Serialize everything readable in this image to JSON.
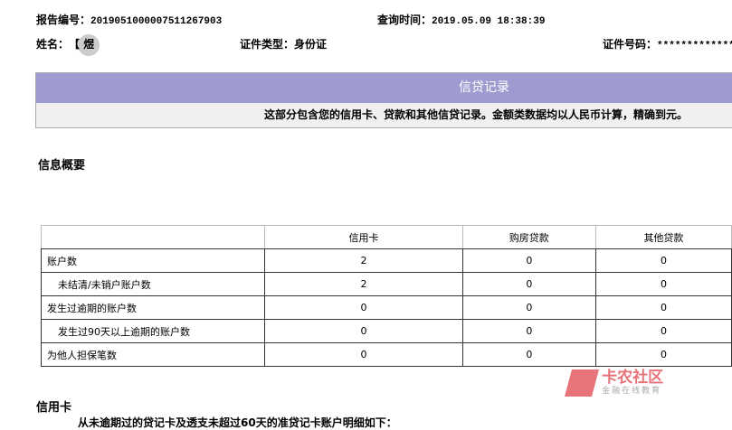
{
  "header": {
    "report_no_label": "报告编号：",
    "report_no": "2019051000007511267903",
    "query_time_label": "查询时间：",
    "query_time": "2019.05.09 18:38:39",
    "name_label": "姓名：",
    "name": "【   煜",
    "id_type_label": "证件类型：",
    "id_type": "身份证",
    "id_no_label": "证件号码：",
    "id_no": "**************"
  },
  "section": {
    "title": "信贷记录",
    "desc": "这部分包含您的信用卡、贷款和其他信贷记录。金额类数据均以人民币计算，精确到元。"
  },
  "summary": {
    "title": "信息概要",
    "columns": [
      "",
      "信用卡",
      "购房贷款",
      "其他贷款"
    ],
    "rows": [
      [
        "账户数",
        "2",
        "0",
        "0"
      ],
      [
        "未结清/未销户账户数",
        "2",
        "0",
        "0"
      ],
      [
        "发生过逾期的账户数",
        "0",
        "0",
        "0"
      ],
      [
        "发生过90天以上逾期的账户数",
        "0",
        "0",
        "0"
      ],
      [
        "为他人担保笔数",
        "0",
        "0",
        "0"
      ]
    ]
  },
  "credit_card": {
    "title": "信用卡",
    "note": "从未逾期过的贷记卡及透支未超过60天的准贷记卡账户明细如下："
  },
  "watermark": {
    "brand": "卡农社区",
    "sub": "金融在线教育",
    "color": "#e8737a"
  }
}
